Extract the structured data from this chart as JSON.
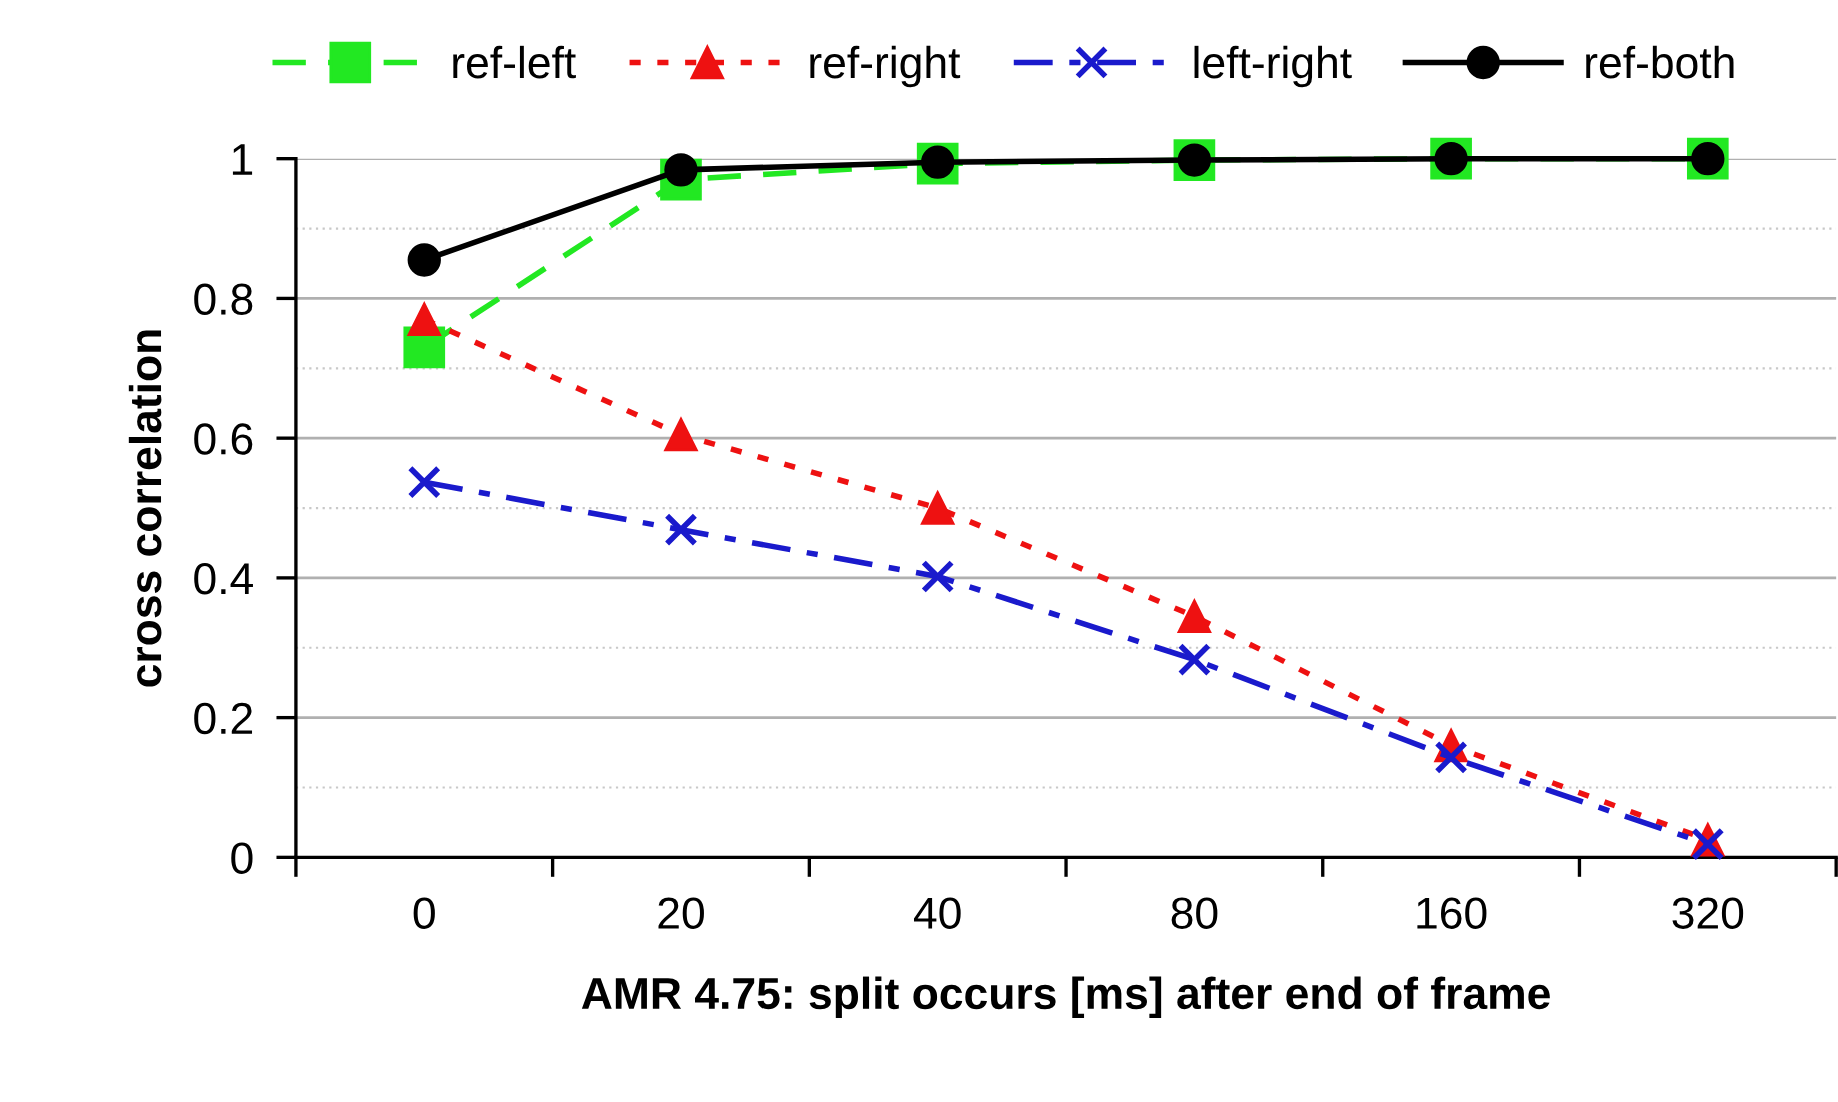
{
  "chart_data": {
    "type": "line",
    "xlabel": "AMR 4.75: split occurs [ms] after end of frame",
    "ylabel": "cross correlation",
    "categories": [
      "0",
      "20",
      "40",
      "80",
      "160",
      "320"
    ],
    "series": [
      {
        "name": "ref-left",
        "color": "#22e822",
        "values": [
          0.73,
          0.97,
          0.993,
          0.998,
          1.0,
          1.0
        ],
        "marker": "square",
        "line_style": "dashed"
      },
      {
        "name": "ref-right",
        "color": "#ee1111",
        "values": [
          0.77,
          0.605,
          0.5,
          0.345,
          0.16,
          0.025
        ],
        "marker": "triangle",
        "line_style": "dotted"
      },
      {
        "name": "left-right",
        "color": "#1a1acc",
        "values": [
          0.537,
          0.469,
          0.402,
          0.283,
          0.143,
          0.019
        ],
        "marker": "cross",
        "line_style": "dashdot"
      },
      {
        "name": "ref-both",
        "color": "#000000",
        "values": [
          0.855,
          0.984,
          0.995,
          0.998,
          1.0,
          1.0
        ],
        "marker": "circle",
        "line_style": "solid"
      }
    ],
    "ylim": [
      0,
      1
    ],
    "yticks": [
      0,
      {
        "value": 0.2,
        "label": "0.2"
      },
      {
        "value": 0.4,
        "label": "0.4"
      },
      {
        "value": 0.6,
        "label": "0.6"
      },
      {
        "value": 0.8,
        "label": "0.8"
      },
      1
    ],
    "grid": "y",
    "legend": "top"
  }
}
